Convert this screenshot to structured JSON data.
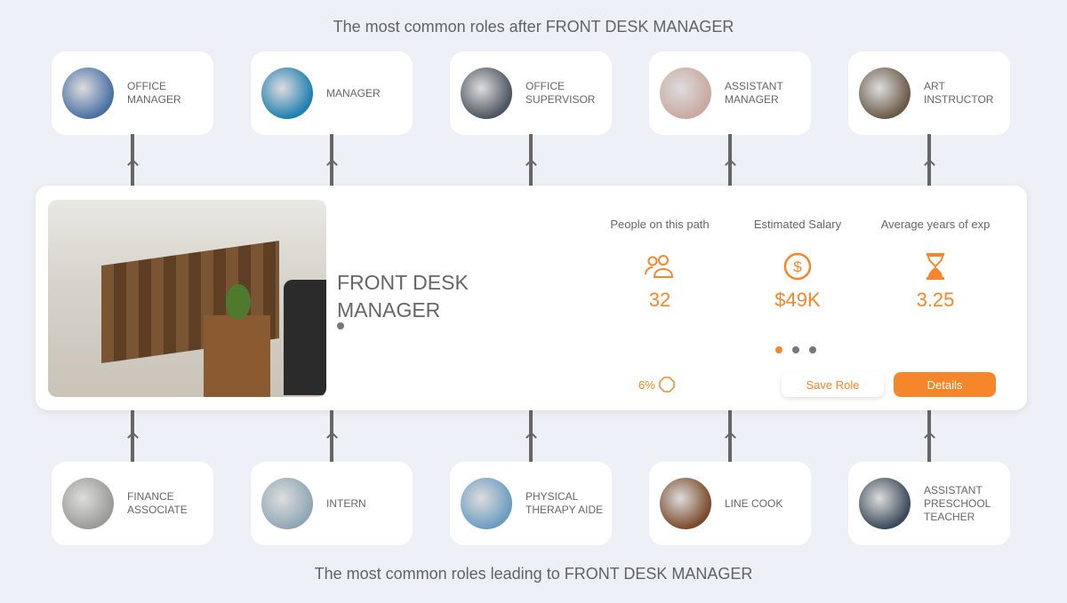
{
  "top_heading": "The most common roles after FRONT DESK MANAGER",
  "bottom_heading": "The most common roles leading to FRONT DESK MANAGER",
  "next_roles": [
    {
      "label": "OFFICE MANAGER",
      "color": "#4a6fa5"
    },
    {
      "label": "MANAGER",
      "color": "#1f7fb0"
    },
    {
      "label": "OFFICE SUPERVISOR",
      "color": "#4c5560"
    },
    {
      "label": "ASSISTANT MANAGER",
      "color": "#c9a9a0"
    },
    {
      "label": "ART INSTRUCTOR",
      "color": "#6b5a48"
    }
  ],
  "previous_roles": [
    {
      "label": "FINANCE ASSOCIATE",
      "color": "#9a9a96"
    },
    {
      "label": "INTERN",
      "color": "#8fa7b5"
    },
    {
      "label": "PHYSICAL THERAPY AIDE",
      "color": "#6a9cc0"
    },
    {
      "label": "LINE COOK",
      "color": "#7a4a2a"
    },
    {
      "label": "ASSISTANT PRESCHOOL TEACHER",
      "color": "#3a4a5a"
    }
  ],
  "current_role": {
    "title": "FRONT DESK MANAGER",
    "stats": [
      {
        "label": "People on this path",
        "value": "32",
        "icon": "people-icon"
      },
      {
        "label": "Estimated Salary",
        "value": "$49K",
        "icon": "dollar-circle-icon"
      },
      {
        "label": "Average years of exp",
        "value": "3.25",
        "icon": "hourglass-icon"
      }
    ],
    "carousel_active": 0,
    "match_percent": "6%",
    "save_label": "Save Role",
    "details_label": "Details"
  },
  "colors": {
    "accent": "#f5862a",
    "background": "#eef0f7"
  }
}
